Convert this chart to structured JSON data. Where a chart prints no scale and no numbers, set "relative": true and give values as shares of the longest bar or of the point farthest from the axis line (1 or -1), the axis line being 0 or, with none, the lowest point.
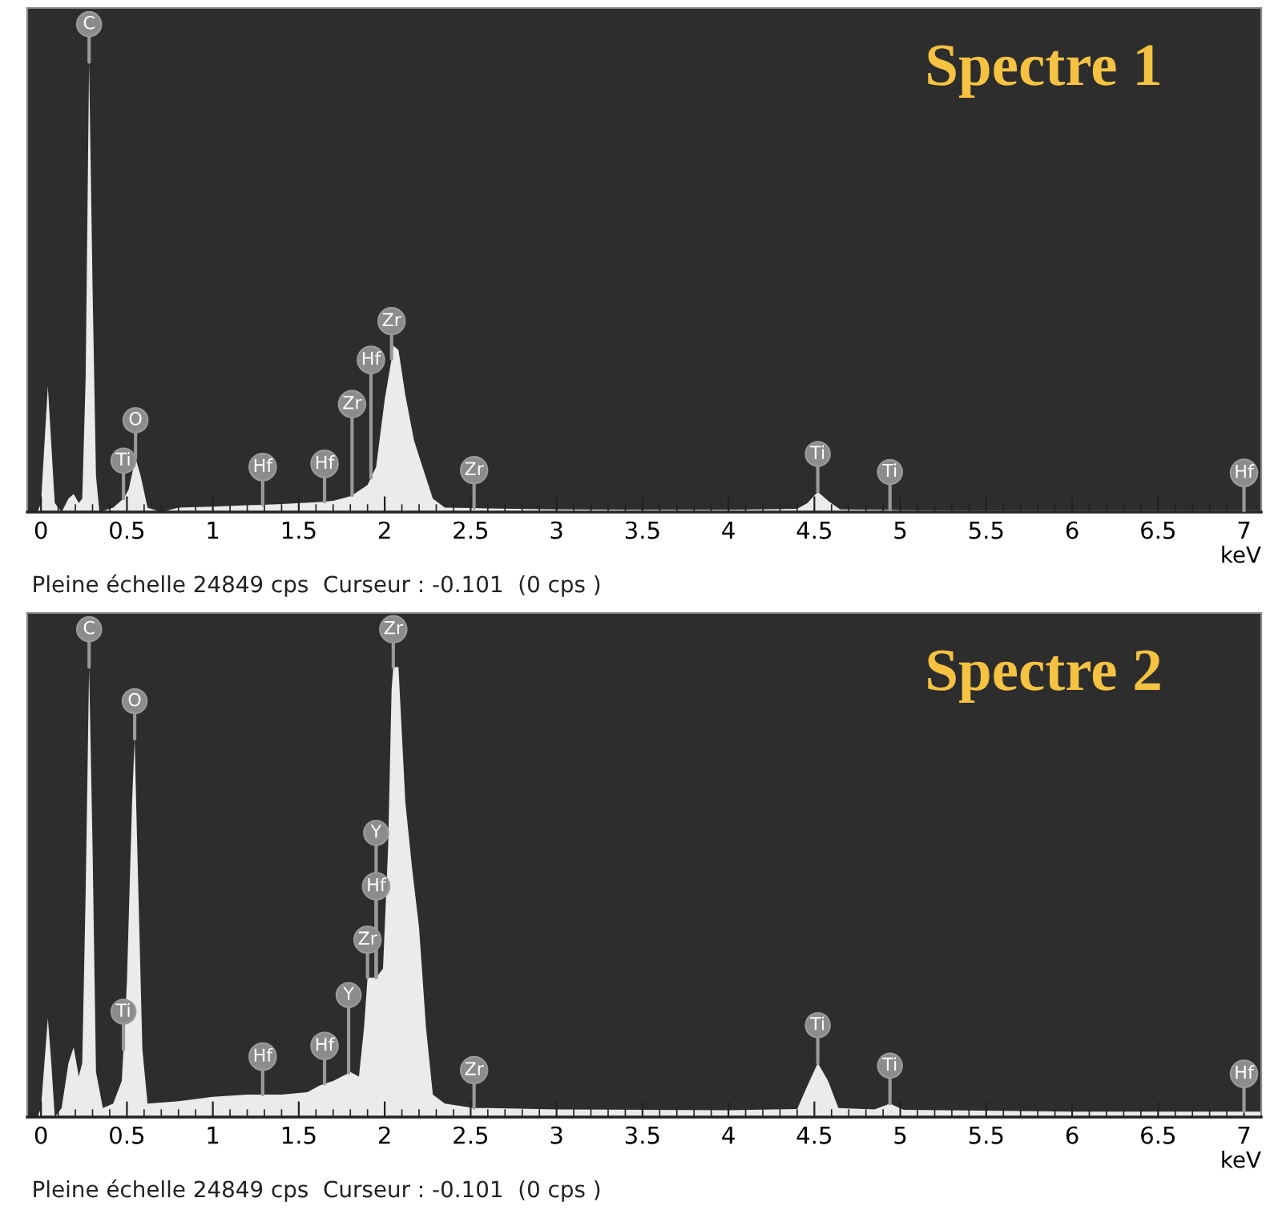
{
  "chart_data": [
    {
      "type": "area",
      "title": "Spectre 1",
      "xlabel": "keV",
      "relative": true,
      "tick_labels": "x",
      "grid": false,
      "xlim": [
        -0.08,
        7.1
      ],
      "xticks": [
        0,
        0.5,
        1,
        1.5,
        2,
        2.5,
        3,
        3.5,
        4,
        4.5,
        5,
        5.5,
        6,
        6.5,
        7
      ],
      "series": [
        {
          "color": "#ebebeb",
          "x": [
            -0.02,
            0.0,
            0.02,
            0.04,
            0.06,
            0.08,
            0.12,
            0.16,
            0.19,
            0.22,
            0.24,
            0.26,
            0.28,
            0.3,
            0.32,
            0.34,
            0.42,
            0.48,
            0.51,
            0.55,
            0.58,
            0.62,
            0.7,
            0.8,
            1.0,
            1.2,
            1.29,
            1.4,
            1.6,
            1.65,
            1.7,
            1.8,
            1.81,
            1.9,
            1.92,
            1.95,
            2.0,
            2.04,
            2.05,
            2.08,
            2.12,
            2.17,
            2.22,
            2.28,
            2.35,
            2.52,
            2.6,
            3.0,
            3.5,
            4.0,
            4.4,
            4.46,
            4.52,
            4.58,
            4.65,
            4.9,
            4.94,
            5.0,
            6.0,
            7.0,
            7.1
          ],
          "values": [
            0,
            0.02,
            0.15,
            0.28,
            0.15,
            0.02,
            0.0,
            0.03,
            0.04,
            0.02,
            0.03,
            0.3,
            1.0,
            0.5,
            0.08,
            0.0,
            0.01,
            0.03,
            0.05,
            0.12,
            0.08,
            0.01,
            0.0,
            0.01,
            0.012,
            0.015,
            0.016,
            0.018,
            0.022,
            0.023,
            0.025,
            0.035,
            0.037,
            0.06,
            0.076,
            0.1,
            0.25,
            0.34,
            0.37,
            0.36,
            0.26,
            0.16,
            0.1,
            0.03,
            0.01,
            0.009,
            0.008,
            0.006,
            0.005,
            0.005,
            0.007,
            0.02,
            0.045,
            0.025,
            0.006,
            0.005,
            0.005,
            0.004,
            0.003,
            0.003,
            0.003
          ]
        }
      ],
      "annotations": [
        {
          "text": "C",
          "x": 0.28,
          "y": 1.0
        },
        {
          "text": "O",
          "x": 0.55,
          "y": 0.12
        },
        {
          "text": "Ti",
          "x": 0.48,
          "y": 0.03
        },
        {
          "text": "Hf",
          "x": 1.29,
          "y": 0.016
        },
        {
          "text": "Hf",
          "x": 1.65,
          "y": 0.023
        },
        {
          "text": "Zr",
          "x": 1.81,
          "y": 0.037
        },
        {
          "text": "Hf",
          "x": 1.92,
          "y": 0.076
        },
        {
          "text": "Zr",
          "x": 2.04,
          "y": 0.34
        },
        {
          "text": "Zr",
          "x": 2.52,
          "y": 0.009
        },
        {
          "text": "Ti",
          "x": 4.52,
          "y": 0.045
        },
        {
          "text": "Ti",
          "x": 4.94,
          "y": 0.005
        },
        {
          "text": "Hf",
          "x": 7.0,
          "y": 0.003
        },
        "Pleine échelle 24849 cps  Curseur : -0.101  (0 cps )"
      ]
    },
    {
      "type": "area",
      "title": "Spectre 2",
      "xlabel": "keV",
      "relative": true,
      "tick_labels": "x",
      "grid": false,
      "xlim": [
        -0.08,
        7.1
      ],
      "xticks": [
        0,
        0.5,
        1,
        1.5,
        2,
        2.5,
        3,
        3.5,
        4,
        4.5,
        5,
        5.5,
        6,
        6.5,
        7
      ],
      "series": [
        {
          "color": "#ebebeb",
          "x": [
            -0.02,
            0.0,
            0.02,
            0.04,
            0.06,
            0.08,
            0.12,
            0.16,
            0.19,
            0.22,
            0.24,
            0.26,
            0.28,
            0.3,
            0.32,
            0.36,
            0.42,
            0.47,
            0.48,
            0.5,
            0.53,
            0.545,
            0.56,
            0.59,
            0.62,
            0.8,
            1.0,
            1.2,
            1.29,
            1.4,
            1.55,
            1.62,
            1.65,
            1.7,
            1.79,
            1.8,
            1.85,
            1.88,
            1.9,
            1.95,
            1.99,
            2.02,
            2.04,
            2.05,
            2.08,
            2.12,
            2.16,
            2.2,
            2.24,
            2.28,
            2.35,
            2.52,
            2.6,
            3.0,
            3.5,
            4.0,
            4.4,
            4.46,
            4.52,
            4.58,
            4.64,
            4.85,
            4.94,
            5.02,
            6.0,
            7.0,
            7.1
          ],
          "values": [
            0,
            0.02,
            0.12,
            0.22,
            0.12,
            0.0,
            0.02,
            0.12,
            0.155,
            0.09,
            0.12,
            0.5,
            1.0,
            0.6,
            0.1,
            0.02,
            0.03,
            0.08,
            0.15,
            0.3,
            0.7,
            0.84,
            0.6,
            0.15,
            0.03,
            0.035,
            0.045,
            0.05,
            0.05,
            0.05,
            0.055,
            0.07,
            0.074,
            0.08,
            0.098,
            0.1,
            0.09,
            0.2,
            0.31,
            0.31,
            0.33,
            0.6,
            0.95,
            1.0,
            1.0,
            0.7,
            0.55,
            0.42,
            0.2,
            0.05,
            0.03,
            0.02,
            0.02,
            0.017,
            0.016,
            0.015,
            0.018,
            0.07,
            0.12,
            0.08,
            0.02,
            0.017,
            0.03,
            0.016,
            0.012,
            0.012,
            0.012
          ]
        }
      ],
      "annotations": [
        {
          "text": "C",
          "x": 0.28,
          "y": 1.0
        },
        {
          "text": "O",
          "x": 0.545,
          "y": 0.84
        },
        {
          "text": "Ti",
          "x": 0.48,
          "y": 0.15
        },
        {
          "text": "Hf",
          "x": 1.29,
          "y": 0.05
        },
        {
          "text": "Hf",
          "x": 1.65,
          "y": 0.074
        },
        {
          "text": "Y",
          "x": 1.79,
          "y": 0.098
        },
        {
          "text": "Zr",
          "x": 1.9,
          "y": 0.31
        },
        {
          "text": "Hf",
          "x": 1.95,
          "y": 0.31
        },
        {
          "text": "Y",
          "x": 1.95,
          "y": 0.31
        },
        {
          "text": "Zr",
          "x": 2.05,
          "y": 1.0
        },
        {
          "text": "Zr",
          "x": 2.52,
          "y": 0.02
        },
        {
          "text": "Ti",
          "x": 4.52,
          "y": 0.12
        },
        {
          "text": "Ti",
          "x": 4.94,
          "y": 0.03
        },
        {
          "text": "Hf",
          "x": 7.0,
          "y": 0.012
        },
        "Pleine échelle 24849 cps  Curseur : -0.101  (0 cps )"
      ]
    }
  ]
}
